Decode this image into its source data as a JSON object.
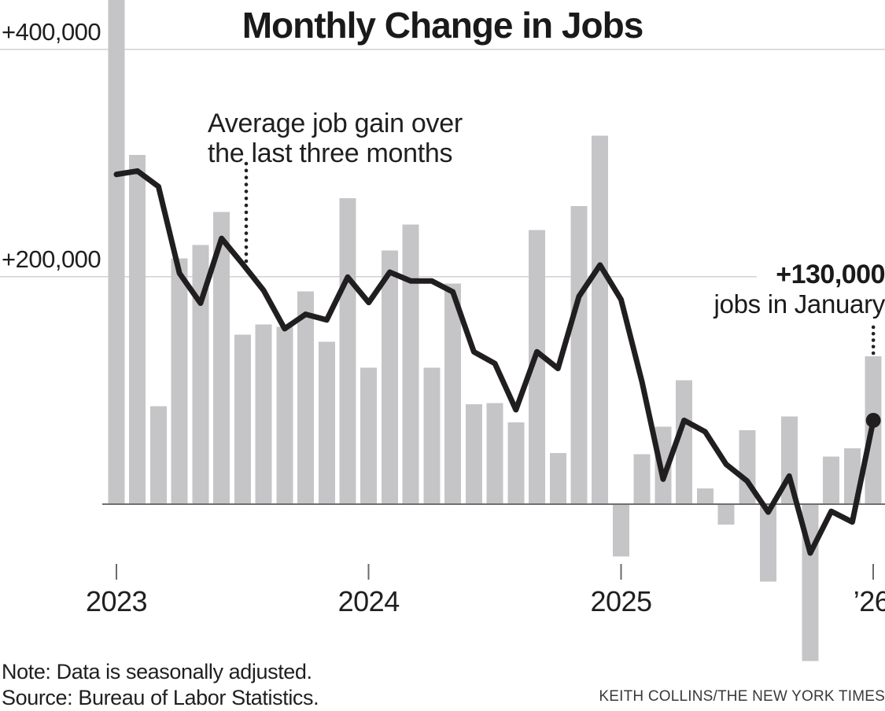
{
  "title": "Monthly Change in Jobs",
  "y_axis": {
    "label_400k": "+400,000",
    "label_200k": "+200,000"
  },
  "x_axis": {
    "ticks": [
      {
        "label": "2023",
        "month_index": 0
      },
      {
        "label": "2024",
        "month_index": 12
      },
      {
        "label": "2025",
        "month_index": 24
      },
      {
        "label": "’26",
        "month_index": 36
      }
    ]
  },
  "annotations": {
    "average_line_1": "Average job gain over",
    "average_line_2": "the last three months",
    "latest_value": "+130,000",
    "latest_caption": "jobs in January"
  },
  "footnotes": {
    "note": "Note: Data is seasonally adjusted.",
    "source": "Source: Bureau of Labor Statistics.",
    "credit": "KEITH COLLINS/THE NEW YORK TIMES"
  },
  "colors": {
    "bar": "#c5c5c7",
    "average_line": "#211e1f",
    "gridline": "#d2d2d2",
    "zero_line": "#6f6f6f",
    "tick": "#6b6b6b",
    "leader_dot": "#222222",
    "text": "#121212"
  },
  "chart_data": {
    "type": "bar+line",
    "title": "Monthly Change in Jobs",
    "units": "jobs, thousands, seasonally adjusted",
    "ylim_thousands": [
      -150,
      450
    ],
    "y_gridlines_thousands": [
      200,
      400
    ],
    "legend_position": "annotations",
    "grid": "horizontal-only",
    "x": [
      "2023-01",
      "2023-02",
      "2023-03",
      "2023-04",
      "2023-05",
      "2023-06",
      "2023-07",
      "2023-08",
      "2023-09",
      "2023-10",
      "2023-11",
      "2023-12",
      "2024-01",
      "2024-02",
      "2024-03",
      "2024-04",
      "2024-05",
      "2024-06",
      "2024-07",
      "2024-08",
      "2024-09",
      "2024-10",
      "2024-11",
      "2024-12",
      "2025-01",
      "2025-02",
      "2025-03",
      "2025-04",
      "2025-05",
      "2025-06",
      "2025-07",
      "2025-08",
      "2025-09",
      "2025-10",
      "2025-11",
      "2025-12",
      "2026-01"
    ],
    "series": [
      {
        "name": "Monthly change in jobs",
        "type": "bar",
        "values_thousands": [
          445,
          307,
          86,
          216,
          228,
          257,
          149,
          158,
          156,
          187,
          143,
          269,
          120,
          223,
          246,
          120,
          194,
          88,
          89,
          72,
          241,
          45,
          262,
          324,
          -46,
          44,
          68,
          109,
          14,
          -18,
          65,
          -68,
          77,
          -138,
          42,
          49,
          130
        ]
      },
      {
        "name": "Average job gain over the last three months",
        "type": "line",
        "values_thousands": [
          290,
          293,
          279.3,
          203,
          176.7,
          233.7,
          211.3,
          188,
          154.3,
          167,
          162,
          199.7,
          177.3,
          204,
          196.3,
          196.3,
          186.7,
          134,
          123.7,
          83,
          134,
          119.3,
          182.7,
          210.3,
          180,
          107.3,
          22,
          73.7,
          63.7,
          35,
          20.3,
          -7,
          24.7,
          -43,
          -6.3,
          -15.7,
          73.7
        ]
      }
    ],
    "highlight": {
      "month": "2026-01",
      "bar_value_thousands": 130,
      "label": "+130,000 jobs in January"
    }
  }
}
